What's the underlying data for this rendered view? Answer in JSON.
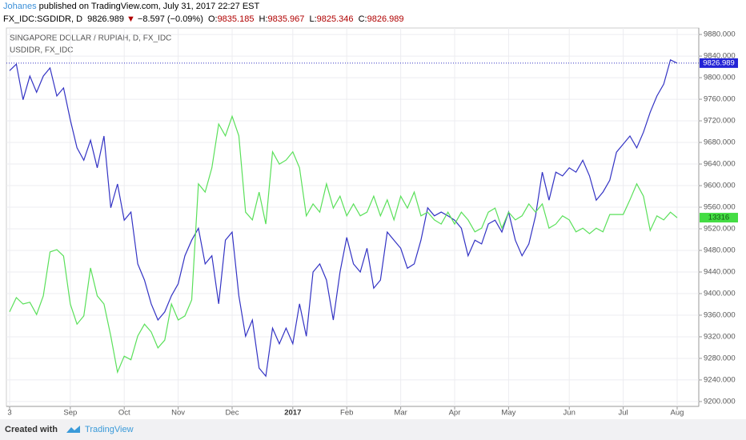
{
  "header": {
    "author": "Johanes",
    "published": "published on TradingView.com, July 31, 2017 22:27 EST"
  },
  "quote": {
    "symbol": "FX_IDC:SGDIDR, D",
    "last": 9826.989,
    "arrow": "▼",
    "change": "−8.597 (−0.09%)",
    "open_label": "O:",
    "open": 9835.185,
    "high_label": "H:",
    "high": 9835.967,
    "low_label": "L:",
    "low": 9825.346,
    "close_label": "C:",
    "close": 9826.989
  },
  "footer": {
    "created": "Created with",
    "brand": "TradingView"
  },
  "chart_data": {
    "type": "line",
    "categories": [
      "3",
      null,
      null,
      null,
      null,
      null,
      null,
      null,
      null,
      "Sep",
      null,
      null,
      null,
      null,
      null,
      null,
      null,
      "Oct",
      null,
      null,
      null,
      null,
      null,
      null,
      null,
      "Nov",
      null,
      null,
      null,
      null,
      null,
      null,
      null,
      "Dec",
      null,
      null,
      null,
      null,
      null,
      null,
      null,
      null,
      "2017",
      null,
      null,
      null,
      null,
      null,
      null,
      null,
      "Feb",
      null,
      null,
      null,
      null,
      null,
      null,
      null,
      "Mar",
      null,
      null,
      null,
      null,
      null,
      null,
      null,
      "Apr",
      null,
      null,
      null,
      null,
      null,
      null,
      null,
      "May",
      null,
      null,
      null,
      null,
      null,
      null,
      null,
      null,
      "Jun",
      null,
      null,
      null,
      null,
      null,
      null,
      null,
      "Jul",
      null,
      null,
      null,
      null,
      null,
      null,
      null,
      "Aug"
    ],
    "series": [
      {
        "name": "SINGAPORE DOLLAR / RUPIAH, D, FX_IDC",
        "color": "#3333c4",
        "values": [
          9813,
          9825,
          9759,
          9803,
          9773,
          9803,
          9818,
          9766,
          9781,
          9722,
          9670,
          9647,
          9684,
          9633,
          9692,
          9559,
          9603,
          9536,
          9551,
          9455,
          9425,
          9381,
          9351,
          9366,
          9396,
          9418,
          9470,
          9499,
          9521,
          9455,
          9470,
          9381,
          9499,
          9514,
          9396,
          9321,
          9351,
          9262,
          9247,
          9336,
          9307,
          9336,
          9307,
          9381,
          9321,
          9440,
          9455,
          9425,
          9351,
          9440,
          9504,
          9455,
          9440,
          9484,
          9410,
          9425,
          9514,
          9499,
          9484,
          9447,
          9455,
          9499,
          9559,
          9544,
          9551,
          9544,
          9536,
          9521,
          9470,
          9499,
          9492,
          9529,
          9536,
          9514,
          9551,
          9499,
          9470,
          9492,
          9544,
          9625,
          9573,
          9625,
          9618,
          9633,
          9625,
          9647,
          9618,
          9573,
          9588,
          9610,
          9662,
          9677,
          9692,
          9670,
          9699,
          9736,
          9766,
          9788,
          9833,
          9826.989
        ]
      },
      {
        "name": "USDIDR, FX_IDC",
        "color": "#5ae05a",
        "axis": "y2",
        "values": [
          13110,
          13141,
          13127,
          13131,
          13104,
          13145,
          13241,
          13246,
          13232,
          13127,
          13083,
          13101,
          13206,
          13145,
          13127,
          13057,
          12978,
          13013,
          13005,
          13057,
          13083,
          13066,
          13031,
          13048,
          13127,
          13092,
          13101,
          13136,
          13390,
          13372,
          13425,
          13521,
          13495,
          13538,
          13495,
          13328,
          13311,
          13372,
          13302,
          13460,
          13433,
          13442,
          13460,
          13425,
          13320,
          13346,
          13328,
          13390,
          13337,
          13363,
          13320,
          13346,
          13320,
          13328,
          13363,
          13320,
          13355,
          13311,
          13363,
          13337,
          13372,
          13320,
          13328,
          13311,
          13302,
          13328,
          13302,
          13328,
          13311,
          13285,
          13293,
          13328,
          13337,
          13293,
          13328,
          13311,
          13320,
          13346,
          13328,
          13346,
          13293,
          13302,
          13320,
          13311,
          13285,
          13293,
          13281,
          13293,
          13285,
          13323,
          13323,
          13323,
          13355,
          13390,
          13363,
          13288,
          13320,
          13311,
          13328,
          13316
        ]
      }
    ],
    "ylim": [
      9191,
      9892
    ],
    "yticks": [
      {
        "value": 9200,
        "label": "9200.000"
      },
      {
        "value": 9240,
        "label": "9240.000"
      },
      {
        "value": 9280,
        "label": "9280.000"
      },
      {
        "value": 9320,
        "label": "9320.000"
      },
      {
        "value": 9360,
        "label": "9360.000"
      },
      {
        "value": 9400,
        "label": "9400.000"
      },
      {
        "value": 9440,
        "label": "9440.000"
      },
      {
        "value": 9480,
        "label": "9480.000"
      },
      {
        "value": 9520,
        "label": "9520.000"
      },
      {
        "value": 9560,
        "label": "9560.000"
      },
      {
        "value": 9600,
        "label": "9600.000"
      },
      {
        "value": 9640,
        "label": "9640.000"
      },
      {
        "value": 9680,
        "label": "9680.000"
      },
      {
        "value": 9720,
        "label": "9720.000"
      },
      {
        "value": 9760,
        "label": "9760.000"
      },
      {
        "value": 9800,
        "label": "9800.000"
      },
      {
        "value": 9840,
        "label": "9840.000"
      },
      {
        "value": 9880,
        "label": "9880.000"
      }
    ],
    "y2lim": [
      12903,
      13731
    ],
    "grid": true
  }
}
